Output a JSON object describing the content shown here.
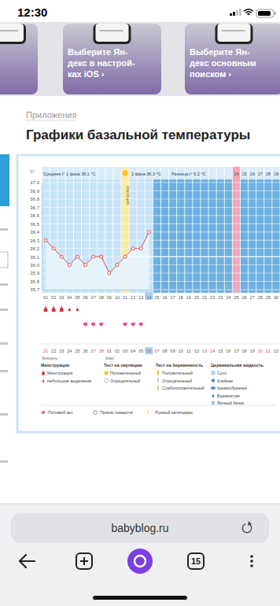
{
  "status_bar": {
    "time": "12:30"
  },
  "promo_tabs": [
    [
      "Выберите Ян-",
      "декс в настрой-",
      "ках iOS ›"
    ],
    [
      "Выберите Ян-",
      "декс основным",
      "поиском ›"
    ]
  ],
  "page": {
    "breadcrumb": "Приложения",
    "title": "Графики базальной температуры"
  },
  "chart_header": {
    "unit": "C°",
    "phase1": "Средняя t° 1 фаза 36.1 °C",
    "phase2": "2 фаза 36.3 °C",
    "difference": "Разница t° 0.2 °C",
    "ovulation": "овуляция"
  },
  "chart_data": {
    "type": "line",
    "categories": [
      "01",
      "02",
      "03",
      "04",
      "05",
      "06",
      "07",
      "08",
      "09",
      "10",
      "11",
      "12",
      "13",
      "14",
      "15",
      "16",
      "17",
      "18",
      "19",
      "20",
      "21",
      "22",
      "23",
      "24",
      "25",
      "26",
      "27",
      "28",
      "29",
      "30"
    ],
    "values": [
      36.3,
      36.2,
      36.1,
      36.0,
      36.1,
      36.0,
      36.1,
      36.1,
      35.9,
      36.0,
      36.1,
      36.2,
      36.2,
      36.4,
      null,
      null,
      null,
      null,
      null,
      null,
      null,
      null,
      null,
      null,
      null,
      null,
      null,
      null,
      null,
      null
    ],
    "color": "#d9534f",
    "marker": "circle",
    "grid": true,
    "ylim": [
      35.7,
      37.0
    ],
    "yticks": [
      {
        "value": 37.0,
        "label": "37.0"
      },
      36.9,
      36.8,
      36.7,
      36.6,
      36.5,
      36.4,
      36.3,
      36.2,
      36.1,
      {
        "value": 36.0,
        "label": "36.0"
      },
      35.9,
      35.8,
      35.7
    ]
  },
  "cycle": {
    "ovulation_day": "11",
    "today": "14",
    "predicted_day": "25",
    "lunar_day": "24",
    "coverline": 36.1,
    "header_days": [
      null,
      null,
      null,
      null,
      null,
      null,
      null,
      null,
      null,
      null,
      null,
      null,
      null,
      null,
      null,
      null,
      null,
      null,
      null,
      null,
      null,
      null,
      null,
      null,
      "14",
      "15",
      "16",
      "17",
      "18",
      "19"
    ],
    "menstruation": [
      "Менструация",
      "Менструация",
      "Менструация",
      "Небольшие выделения",
      "Небольшие выделения",
      null,
      null,
      null,
      null,
      null,
      null,
      null,
      null,
      null,
      null,
      null,
      null,
      null,
      null,
      null,
      null,
      null,
      null,
      null,
      null,
      null,
      null,
      null,
      null,
      null
    ],
    "intercourse": [
      false,
      false,
      false,
      false,
      false,
      true,
      true,
      true,
      false,
      false,
      true,
      true,
      true,
      false,
      false,
      false,
      false,
      false,
      false,
      false,
      false,
      false,
      false,
      false,
      false,
      false,
      false,
      false,
      false,
      false
    ]
  },
  "calendar": {
    "dates": [
      "21",
      "22",
      "23",
      "24",
      "25",
      "26",
      "27",
      "28",
      "01",
      "02",
      "03",
      "04",
      "05",
      "06",
      "07",
      "08",
      "09",
      "10",
      "11",
      "12",
      "13",
      "14",
      "15",
      "16",
      "17",
      "18",
      "19",
      "20",
      "21",
      "22"
    ],
    "weekend": [
      true,
      false,
      false,
      false,
      false,
      false,
      true,
      true,
      false,
      false,
      false,
      false,
      false,
      true,
      true,
      false,
      false,
      false,
      false,
      false,
      true,
      true,
      false,
      false,
      false,
      false,
      false,
      true,
      true,
      false
    ],
    "months": [
      {
        "label": "Февраль",
        "day": "01"
      },
      {
        "label": "Март",
        "day": "09"
      }
    ]
  },
  "legend_groups": [
    {
      "title": "Менструация",
      "items": [
        "Менструация",
        "Небольшие выделения"
      ]
    },
    {
      "title": "Тест на овуляцию",
      "items": [
        "Положительный",
        "Отрицательный"
      ]
    },
    {
      "title": "Тест на беременность",
      "items": [
        "Положительный",
        "Отрицательный",
        "Слабоположительный"
      ]
    },
    {
      "title": "Цервикальная жидкость",
      "items": [
        "Сухо",
        "Клейкая",
        "Кремообразная",
        "Водянистая",
        "Яичный белок"
      ]
    }
  ],
  "legend_bottom": [
    "Половой акт",
    "Прием лекарств",
    "Лунный календарь"
  ],
  "browser": {
    "url": "babyblog.ru",
    "tabs": "15"
  }
}
